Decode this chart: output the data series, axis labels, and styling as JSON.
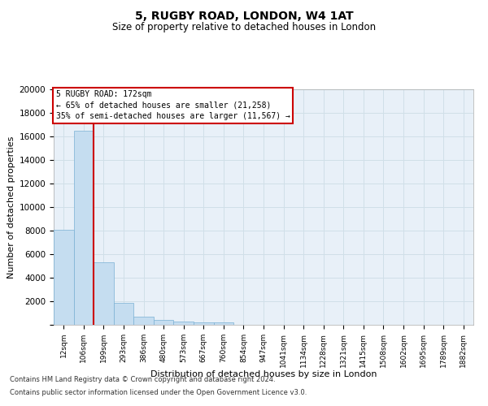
{
  "title1": "5, RUGBY ROAD, LONDON, W4 1AT",
  "title2": "Size of property relative to detached houses in London",
  "xlabel": "Distribution of detached houses by size in London",
  "ylabel": "Number of detached properties",
  "bar_color": "#c5ddf0",
  "bar_edge_color": "#7ab0d4",
  "highlight_color": "#cc0000",
  "categories": [
    "12sqm",
    "106sqm",
    "199sqm",
    "293sqm",
    "386sqm",
    "480sqm",
    "573sqm",
    "667sqm",
    "760sqm",
    "854sqm",
    "947sqm",
    "1041sqm",
    "1134sqm",
    "1228sqm",
    "1321sqm",
    "1415sqm",
    "1508sqm",
    "1602sqm",
    "1695sqm",
    "1789sqm",
    "1882sqm"
  ],
  "values": [
    8100,
    16500,
    5300,
    1850,
    700,
    380,
    280,
    220,
    190,
    0,
    0,
    0,
    0,
    0,
    0,
    0,
    0,
    0,
    0,
    0,
    0
  ],
  "ylim": [
    0,
    20000
  ],
  "yticks": [
    0,
    2000,
    4000,
    6000,
    8000,
    10000,
    12000,
    14000,
    16000,
    18000,
    20000
  ],
  "property_bin_index": 1,
  "vline_x": 1.5,
  "annotation_line1": "5 RUGBY ROAD: 172sqm",
  "annotation_line2": "← 65% of detached houses are smaller (21,258)",
  "annotation_line3": "35% of semi-detached houses are larger (11,567) →",
  "footnote1": "Contains HM Land Registry data © Crown copyright and database right 2024.",
  "footnote2": "Contains public sector information licensed under the Open Government Licence v3.0.",
  "grid_color": "#d0dfe8",
  "background_color": "#e8f0f8",
  "fig_bg": "#ffffff",
  "spine_color": "#aaaaaa"
}
